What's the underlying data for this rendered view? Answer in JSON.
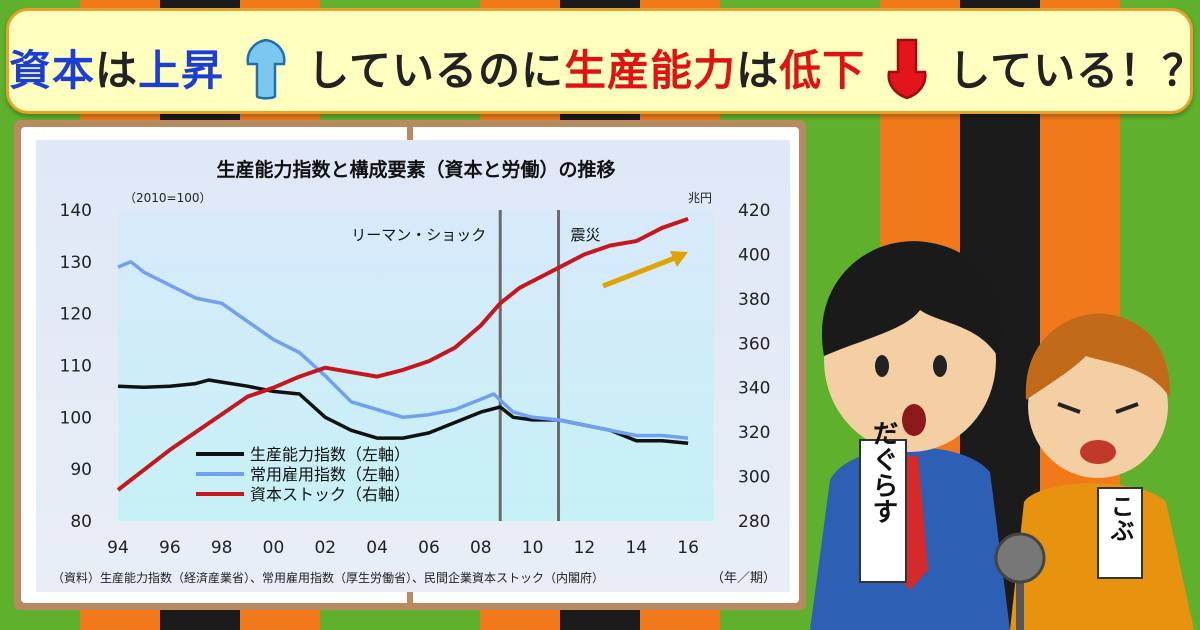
{
  "headline": {
    "p1": "資本",
    "p2": "は",
    "p3": "上昇",
    "p4": "しているのに",
    "p5": "生産能力",
    "p6": "は",
    "p7": "低下",
    "p8": "している！？"
  },
  "chart_data": {
    "type": "line",
    "title": "生産能力指数と構成要素（資本と労働）の推移",
    "left_unit": "（2010=100）",
    "right_unit": "兆円",
    "xlabel": "（年／期）",
    "source": "（資料）生産能力指数（経済産業省）、常用雇用指数（厚生労働省）、民間企業資本ストック（内閣府）",
    "x_ticks": [
      "94",
      "96",
      "98",
      "00",
      "02",
      "04",
      "06",
      "08",
      "10",
      "12",
      "14",
      "16"
    ],
    "x_tick_years": [
      1994,
      1996,
      1998,
      2000,
      2002,
      2004,
      2006,
      2008,
      2010,
      2012,
      2014,
      2016
    ],
    "xlim": [
      1994,
      2017
    ],
    "left_ylim": [
      80,
      140
    ],
    "left_ticks": [
      80,
      90,
      100,
      110,
      120,
      130,
      140
    ],
    "right_ylim": [
      280,
      420
    ],
    "right_ticks": [
      280,
      300,
      320,
      340,
      360,
      380,
      400,
      420
    ],
    "events": [
      {
        "label": "リーマン・ショック",
        "year": 2008.75
      },
      {
        "label": "震災",
        "year": 2011.0
      }
    ],
    "series": [
      {
        "name": "生産能力指数（左軸）",
        "axis": "left",
        "color": "#111111",
        "x": [
          1994,
          1995,
          1996,
          1997,
          1997.5,
          1998,
          1999,
          2000,
          2001,
          2002,
          2003,
          2004,
          2005,
          2006,
          2007,
          2008,
          2008.75,
          2009.25,
          2010,
          2011,
          2012,
          2013,
          2014,
          2015,
          2016
        ],
        "y": [
          106,
          105.8,
          106,
          106.5,
          107.2,
          106.8,
          106,
          105,
          104.5,
          100,
          97.5,
          96,
          96,
          97,
          99,
          101,
          102,
          100,
          99.5,
          99.5,
          98.5,
          97.5,
          95.5,
          95.5,
          95
        ]
      },
      {
        "name": "常用雇用指数（左軸）",
        "axis": "left",
        "color": "#6fa0f2",
        "x": [
          1994,
          1994.5,
          1995,
          1996,
          1997,
          1998,
          1999,
          2000,
          2001,
          2002,
          2003,
          2004,
          2005,
          2006,
          2007,
          2008,
          2008.5,
          2009.25,
          2010,
          2011,
          2012,
          2013,
          2014,
          2015,
          2016
        ],
        "y": [
          129,
          130,
          128,
          125.5,
          123,
          122,
          118.5,
          115,
          112.5,
          108,
          103,
          101.5,
          100,
          100.5,
          101.5,
          103.5,
          104.5,
          101,
          100,
          99.5,
          98.5,
          97.5,
          96.5,
          96.5,
          96
        ]
      },
      {
        "name": "資本ストック（右軸）",
        "axis": "right",
        "color": "#c8161d",
        "x": [
          1994,
          1995,
          1996,
          1997,
          1998,
          1999,
          2000,
          2001,
          2002,
          2003,
          2004,
          2005,
          2006,
          2007,
          2008,
          2008.75,
          2009.5,
          2010,
          2011,
          2012,
          2013,
          2014,
          2015,
          2016
        ],
        "y": [
          294,
          303,
          312,
          320,
          328,
          336,
          340,
          345,
          349,
          347,
          345,
          348,
          352,
          358,
          368,
          378,
          385,
          388,
          394,
          400,
          404,
          406,
          412,
          416
        ]
      }
    ]
  },
  "people": {
    "left_tag": "だぐらす",
    "right_tag": "こぶ"
  }
}
